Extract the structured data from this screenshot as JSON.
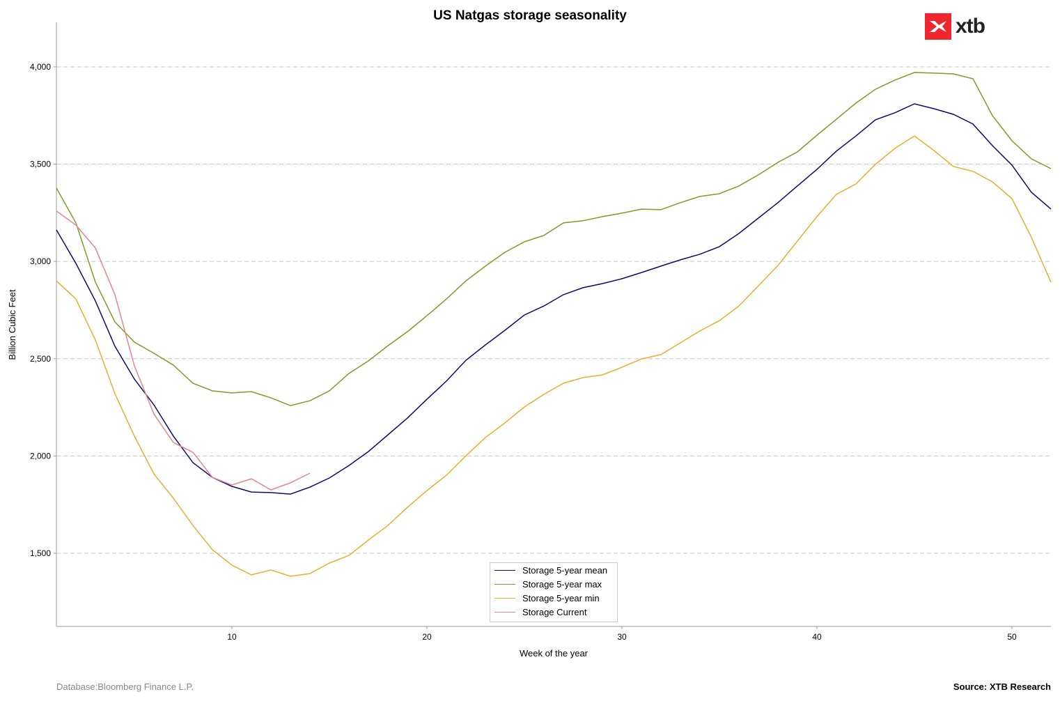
{
  "logo_text": "xtb",
  "footer": {
    "left": "Database:Bloomberg Finance L.P.",
    "right": "Source: XTB Research"
  },
  "chart_data": {
    "type": "line",
    "title": "US Natgas storage seasonality",
    "xlabel": "Week of the year",
    "ylabel": "Billion Cubic Feet",
    "xlim": [
      1,
      52
    ],
    "ylim": [
      1124,
      4229
    ],
    "xticks": [
      10,
      20,
      30,
      40,
      50
    ],
    "yticks": [
      1500,
      2000,
      2500,
      3000,
      3500,
      4000
    ],
    "ytick_labels": [
      "1,500",
      "2,000",
      "2,500",
      "3,000",
      "3,500",
      "4,000"
    ],
    "grid": "horizontal dashed",
    "legend_placement": "bottom-center",
    "series": [
      {
        "name": "Storage 5-year mean",
        "color": "#0a0a6e",
        "start_week": 1,
        "values": [
          3162,
          2990,
          2797,
          2564,
          2395,
          2263,
          2102,
          1966,
          1890,
          1844,
          1815,
          1812,
          1804,
          1840,
          1887,
          1951,
          2023,
          2109,
          2195,
          2292,
          2385,
          2492,
          2571,
          2646,
          2725,
          2771,
          2829,
          2865,
          2886,
          2911,
          2943,
          2976,
          3008,
          3037,
          3076,
          3144,
          3223,
          3302,
          3388,
          3473,
          3567,
          3645,
          3728,
          3764,
          3810,
          3785,
          3756,
          3706,
          3595,
          3495,
          3355,
          3269
        ]
      },
      {
        "name": "Storage 5-year max",
        "color": "#7f9a2a",
        "start_week": 1,
        "values": [
          3377,
          3198,
          2893,
          2689,
          2585,
          2528,
          2467,
          2374,
          2335,
          2324,
          2331,
          2299,
          2259,
          2284,
          2335,
          2424,
          2489,
          2567,
          2639,
          2721,
          2807,
          2900,
          2976,
          3047,
          3101,
          3134,
          3198,
          3209,
          3230,
          3248,
          3269,
          3266,
          3302,
          3334,
          3348,
          3388,
          3445,
          3509,
          3563,
          3649,
          3731,
          3814,
          3885,
          3932,
          3971,
          3968,
          3964,
          3939,
          3749,
          3620,
          3527,
          3477
        ]
      },
      {
        "name": "Storage 5-year min",
        "color": "#e8ae2e",
        "start_week": 1,
        "values": [
          2900,
          2807,
          2596,
          2320,
          2102,
          1908,
          1783,
          1643,
          1518,
          1439,
          1389,
          1414,
          1382,
          1396,
          1450,
          1489,
          1568,
          1643,
          1736,
          1822,
          1901,
          2001,
          2095,
          2170,
          2252,
          2317,
          2374,
          2403,
          2417,
          2456,
          2499,
          2521,
          2582,
          2643,
          2696,
          2771,
          2875,
          2979,
          3105,
          3230,
          3345,
          3398,
          3499,
          3581,
          3645,
          3570,
          3488,
          3463,
          3409,
          3323,
          3123,
          2893
        ]
      },
      {
        "name": "Storage Current",
        "color": "#e8848c",
        "start_week": 1,
        "values": [
          3259,
          3187,
          3069,
          2829,
          2463,
          2216,
          2069,
          2019,
          1890,
          1851,
          1883,
          1826,
          1862,
          1912
        ]
      }
    ]
  }
}
